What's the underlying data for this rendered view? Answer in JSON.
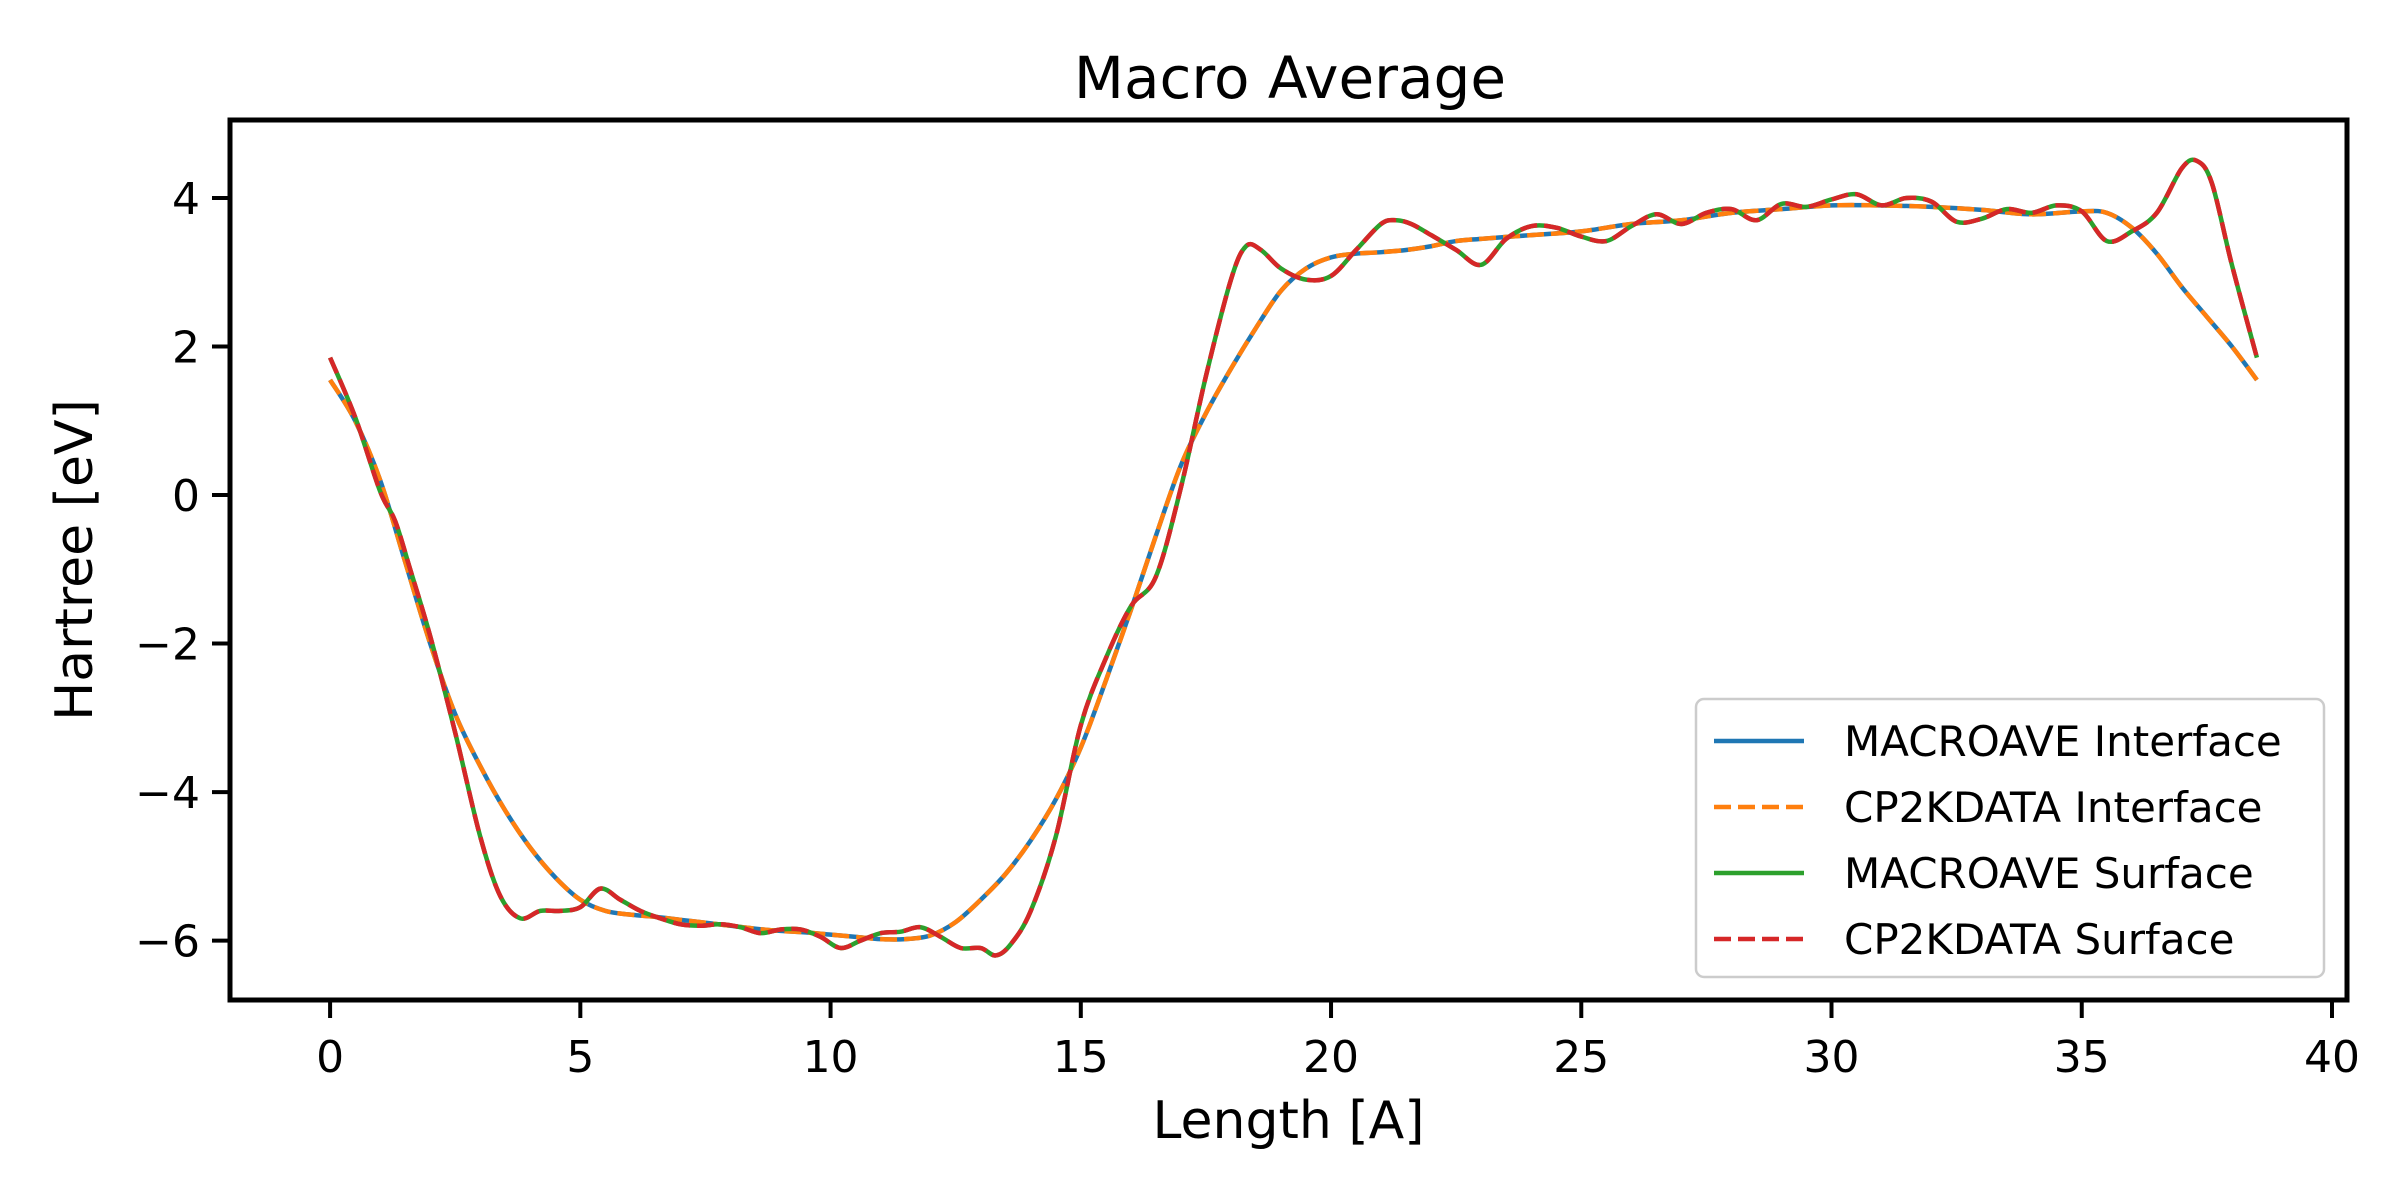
{
  "chart_data": {
    "type": "line",
    "title": "Macro Average",
    "xlabel": "Length [A]",
    "ylabel": "Hartree [eV]",
    "xlim": [
      -2,
      40.3
    ],
    "ylim": [
      -6.8,
      5.05
    ],
    "xticks": [
      0,
      5,
      10,
      15,
      20,
      25,
      30,
      35,
      40
    ],
    "yticks": [
      -6,
      -4,
      -2,
      0,
      2,
      4
    ],
    "grid": false,
    "legend_position": "lower-right",
    "series": [
      {
        "name": "MACROAVE Interface",
        "color": "#1f77b4",
        "style": "solid",
        "x": [
          0,
          0.5,
          1,
          1.5,
          2,
          2.5,
          3,
          3.5,
          4,
          4.5,
          5,
          5.5,
          6,
          6.5,
          7,
          7.5,
          8,
          8.5,
          9,
          9.5,
          10,
          10.5,
          11,
          11.5,
          12,
          12.5,
          13,
          13.5,
          14,
          14.5,
          15,
          15.5,
          16,
          16.5,
          17,
          17.5,
          18,
          18.5,
          19,
          19.5,
          20,
          20.5,
          21,
          21.5,
          22,
          22.5,
          23,
          24,
          25,
          26,
          27,
          28,
          29,
          30,
          31,
          32,
          33,
          34,
          35,
          35.5,
          36,
          36.5,
          37,
          37.5,
          38,
          38.5
        ],
        "y": [
          1.55,
          1.0,
          0.2,
          -0.9,
          -2.0,
          -2.95,
          -3.65,
          -4.25,
          -4.75,
          -5.15,
          -5.45,
          -5.6,
          -5.65,
          -5.68,
          -5.72,
          -5.76,
          -5.8,
          -5.84,
          -5.87,
          -5.89,
          -5.92,
          -5.95,
          -5.98,
          -5.98,
          -5.93,
          -5.75,
          -5.45,
          -5.1,
          -4.65,
          -4.1,
          -3.4,
          -2.5,
          -1.55,
          -0.55,
          0.4,
          1.1,
          1.7,
          2.25,
          2.75,
          3.05,
          3.2,
          3.25,
          3.27,
          3.3,
          3.35,
          3.42,
          3.45,
          3.5,
          3.55,
          3.65,
          3.7,
          3.8,
          3.85,
          3.9,
          3.9,
          3.88,
          3.84,
          3.78,
          3.82,
          3.8,
          3.6,
          3.25,
          2.8,
          2.4,
          2.0,
          1.55
        ]
      },
      {
        "name": "CP2KDATA Interface",
        "color": "#ff7f0e",
        "style": "dashed",
        "x": [
          0,
          0.5,
          1,
          1.5,
          2,
          2.5,
          3,
          3.5,
          4,
          4.5,
          5,
          5.5,
          6,
          6.5,
          7,
          7.5,
          8,
          8.5,
          9,
          9.5,
          10,
          10.5,
          11,
          11.5,
          12,
          12.5,
          13,
          13.5,
          14,
          14.5,
          15,
          15.5,
          16,
          16.5,
          17,
          17.5,
          18,
          18.5,
          19,
          19.5,
          20,
          20.5,
          21,
          21.5,
          22,
          22.5,
          23,
          24,
          25,
          26,
          27,
          28,
          29,
          30,
          31,
          32,
          33,
          34,
          35,
          35.5,
          36,
          36.5,
          37,
          37.5,
          38,
          38.5
        ],
        "y": [
          1.55,
          1.0,
          0.2,
          -0.9,
          -2.0,
          -2.95,
          -3.65,
          -4.25,
          -4.75,
          -5.15,
          -5.45,
          -5.6,
          -5.65,
          -5.68,
          -5.72,
          -5.76,
          -5.8,
          -5.84,
          -5.87,
          -5.89,
          -5.92,
          -5.95,
          -5.98,
          -5.98,
          -5.93,
          -5.75,
          -5.45,
          -5.1,
          -4.65,
          -4.1,
          -3.4,
          -2.5,
          -1.55,
          -0.55,
          0.4,
          1.1,
          1.7,
          2.25,
          2.75,
          3.05,
          3.2,
          3.25,
          3.27,
          3.3,
          3.35,
          3.42,
          3.45,
          3.5,
          3.55,
          3.65,
          3.7,
          3.8,
          3.85,
          3.9,
          3.9,
          3.88,
          3.84,
          3.78,
          3.82,
          3.8,
          3.6,
          3.25,
          2.8,
          2.4,
          2.0,
          1.55
        ]
      },
      {
        "name": "MACROAVE Surface",
        "color": "#2ca02c",
        "style": "solid",
        "x": [
          0,
          0.5,
          1,
          1.3,
          1.6,
          2,
          2.5,
          3,
          3.4,
          3.8,
          4.2,
          4.6,
          5.0,
          5.4,
          5.8,
          6.2,
          6.6,
          7.0,
          7.4,
          7.8,
          8.2,
          8.6,
          9.0,
          9.4,
          9.8,
          10.2,
          10.6,
          11.0,
          11.4,
          11.8,
          12.2,
          12.6,
          13.0,
          13.3,
          13.6,
          14.0,
          14.5,
          15.0,
          15.5,
          16.0,
          16.5,
          17.0,
          17.5,
          18.0,
          18.3,
          18.6,
          19.0,
          19.5,
          20.0,
          20.5,
          21.0,
          21.3,
          21.6,
          22.0,
          22.5,
          23.0,
          23.5,
          24.0,
          24.5,
          25.0,
          25.5,
          26.0,
          26.5,
          27.0,
          27.5,
          28.0,
          28.5,
          29.0,
          29.5,
          30.0,
          30.5,
          31.0,
          31.5,
          32.0,
          32.5,
          33.0,
          33.5,
          34.0,
          34.5,
          35.0,
          35.5,
          36.0,
          36.5,
          37.0,
          37.3,
          37.6,
          38.0,
          38.5
        ],
        "y": [
          1.85,
          1.05,
          0.05,
          -0.35,
          -1.0,
          -1.9,
          -3.2,
          -4.6,
          -5.4,
          -5.7,
          -5.6,
          -5.6,
          -5.55,
          -5.3,
          -5.45,
          -5.6,
          -5.7,
          -5.78,
          -5.8,
          -5.78,
          -5.82,
          -5.9,
          -5.85,
          -5.85,
          -5.95,
          -6.1,
          -6.0,
          -5.9,
          -5.88,
          -5.82,
          -5.95,
          -6.1,
          -6.1,
          -6.2,
          -6.05,
          -5.6,
          -4.6,
          -3.1,
          -2.2,
          -1.5,
          -1.1,
          0.1,
          1.6,
          2.9,
          3.35,
          3.3,
          3.05,
          2.9,
          2.95,
          3.3,
          3.65,
          3.7,
          3.65,
          3.5,
          3.3,
          3.1,
          3.45,
          3.62,
          3.6,
          3.48,
          3.42,
          3.62,
          3.78,
          3.65,
          3.8,
          3.85,
          3.7,
          3.92,
          3.88,
          3.98,
          4.05,
          3.9,
          4.0,
          3.95,
          3.68,
          3.72,
          3.85,
          3.8,
          3.9,
          3.82,
          3.42,
          3.55,
          3.8,
          4.4,
          4.5,
          4.2,
          3.1,
          1.85
        ]
      },
      {
        "name": "CP2KDATA Surface",
        "color": "#d62728",
        "style": "dashed",
        "x": [
          0,
          0.5,
          1,
          1.3,
          1.6,
          2,
          2.5,
          3,
          3.4,
          3.8,
          4.2,
          4.6,
          5.0,
          5.4,
          5.8,
          6.2,
          6.6,
          7.0,
          7.4,
          7.8,
          8.2,
          8.6,
          9.0,
          9.4,
          9.8,
          10.2,
          10.6,
          11.0,
          11.4,
          11.8,
          12.2,
          12.6,
          13.0,
          13.3,
          13.6,
          14.0,
          14.5,
          15.0,
          15.5,
          16.0,
          16.5,
          17.0,
          17.5,
          18.0,
          18.3,
          18.6,
          19.0,
          19.5,
          20.0,
          20.5,
          21.0,
          21.3,
          21.6,
          22.0,
          22.5,
          23.0,
          23.5,
          24.0,
          24.5,
          25.0,
          25.5,
          26.0,
          26.5,
          27.0,
          27.5,
          28.0,
          28.5,
          29.0,
          29.5,
          30.0,
          30.5,
          31.0,
          31.5,
          32.0,
          32.5,
          33.0,
          33.5,
          34.0,
          34.5,
          35.0,
          35.5,
          36.0,
          36.5,
          37.0,
          37.3,
          37.6,
          38.0,
          38.5
        ],
        "y": [
          1.85,
          1.05,
          0.05,
          -0.35,
          -1.0,
          -1.9,
          -3.2,
          -4.6,
          -5.4,
          -5.7,
          -5.6,
          -5.6,
          -5.55,
          -5.3,
          -5.45,
          -5.6,
          -5.7,
          -5.78,
          -5.8,
          -5.78,
          -5.82,
          -5.9,
          -5.85,
          -5.85,
          -5.95,
          -6.1,
          -6.0,
          -5.9,
          -5.88,
          -5.82,
          -5.95,
          -6.1,
          -6.1,
          -6.2,
          -6.05,
          -5.6,
          -4.6,
          -3.1,
          -2.2,
          -1.5,
          -1.1,
          0.1,
          1.6,
          2.9,
          3.35,
          3.3,
          3.05,
          2.9,
          2.95,
          3.3,
          3.65,
          3.7,
          3.65,
          3.5,
          3.3,
          3.1,
          3.45,
          3.62,
          3.6,
          3.48,
          3.42,
          3.62,
          3.78,
          3.65,
          3.8,
          3.85,
          3.7,
          3.92,
          3.88,
          3.98,
          4.05,
          3.9,
          4.0,
          3.95,
          3.68,
          3.72,
          3.85,
          3.8,
          3.9,
          3.82,
          3.42,
          3.55,
          3.8,
          4.4,
          4.5,
          4.2,
          3.1,
          1.85
        ]
      }
    ]
  }
}
